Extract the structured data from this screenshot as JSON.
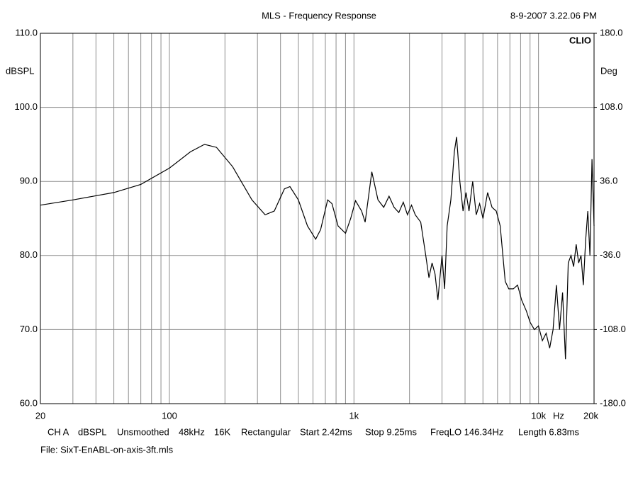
{
  "chart_data": {
    "type": "line",
    "title": "MLS - Frequency Response",
    "date": "8-9-2007 3.22.06 PM",
    "brand": "CLIO",
    "ylabel": "dBSPL",
    "y2label": "Deg",
    "xunit": "Hz",
    "xscale": "log",
    "xlim": [
      20,
      20000
    ],
    "ylim": [
      60,
      110
    ],
    "y2lim": [
      -180,
      180
    ],
    "xticks": [
      20,
      100,
      {
        "value": 1000,
        "label": "1k"
      },
      {
        "value": 10000,
        "label": "10k"
      },
      {
        "value": 20000,
        "label": "20k"
      }
    ],
    "xminor_ticks": [
      30,
      40,
      50,
      60,
      70,
      80,
      90,
      200,
      300,
      400,
      500,
      600,
      700,
      800,
      900,
      2000,
      3000,
      4000,
      5000,
      6000,
      7000,
      8000,
      9000
    ],
    "yticks": [
      {
        "value": 60,
        "label": "60.0"
      },
      {
        "value": 70,
        "label": "70.0"
      },
      {
        "value": 80,
        "label": "80.0"
      },
      {
        "value": 90,
        "label": "90.0"
      },
      {
        "value": 100,
        "label": "100.0"
      },
      {
        "value": 110,
        "label": "110.0"
      }
    ],
    "y2ticks": [
      {
        "value": -180,
        "label": "-180.0"
      },
      {
        "value": -108,
        "label": "-108.0"
      },
      {
        "value": -36,
        "label": "-36.0"
      },
      {
        "value": 36,
        "label": "36.0"
      },
      {
        "value": 108,
        "label": "108.0"
      },
      {
        "value": 180,
        "label": "180.0"
      }
    ],
    "grid": true,
    "color": "#000000",
    "x": [
      20,
      30,
      50,
      70,
      100,
      130,
      155,
      180,
      220,
      280,
      330,
      370,
      420,
      450,
      500,
      560,
      620,
      660,
      720,
      760,
      820,
      900,
      960,
      1020,
      1100,
      1150,
      1250,
      1350,
      1450,
      1550,
      1650,
      1750,
      1850,
      1950,
      2050,
      2150,
      2300,
      2450,
      2550,
      2650,
      2750,
      2850,
      3000,
      3100,
      3200,
      3350,
      3500,
      3600,
      3750,
      3900,
      4050,
      4200,
      4400,
      4600,
      4800,
      5000,
      5300,
      5600,
      5900,
      6200,
      6600,
      6900,
      7300,
      7700,
      8100,
      8600,
      9000,
      9500,
      10000,
      10500,
      11000,
      11500,
      12000,
      12500,
      13000,
      13500,
      14000,
      14500,
      15000,
      15500,
      16000,
      16500,
      17000,
      17500,
      18000,
      18500,
      19000,
      19500,
      20000
    ],
    "values": [
      86.8,
      87.5,
      88.5,
      89.6,
      91.8,
      94.0,
      95.0,
      94.6,
      92.0,
      87.5,
      85.5,
      86.0,
      89.0,
      89.3,
      87.5,
      84.0,
      82.2,
      83.5,
      87.5,
      87.0,
      84.0,
      83.0,
      85.0,
      87.4,
      86.0,
      84.5,
      91.3,
      87.5,
      86.5,
      88.0,
      86.5,
      85.8,
      87.2,
      85.5,
      86.8,
      85.5,
      84.5,
      80.0,
      77.0,
      79.0,
      77.5,
      74.0,
      80.0,
      75.5,
      84.0,
      87.5,
      94.0,
      96.0,
      90.0,
      86.0,
      88.5,
      86.0,
      90.0,
      85.5,
      87.0,
      85.0,
      88.5,
      86.5,
      86.0,
      84.0,
      76.5,
      75.5,
      75.5,
      76.0,
      74.0,
      72.5,
      71.0,
      70.0,
      70.5,
      68.5,
      69.5,
      67.5,
      70.0,
      76.0,
      70.0,
      75.0,
      66.0,
      79.0,
      80.0,
      78.5,
      81.5,
      79.0,
      80.0,
      76.0,
      82.0,
      86.0,
      80.0,
      93.0,
      84.0
    ]
  },
  "footer": {
    "items": [
      "CH A",
      "dBSPL",
      "Unsmoothed",
      "48kHz",
      "16K",
      "Rectangular",
      "Start 2.42ms",
      "Stop 9.25ms",
      "FreqLO 146.34Hz",
      "Length 6.83ms"
    ],
    "file": "File: SixT-EnABL-on-axis-3ft.mls"
  }
}
